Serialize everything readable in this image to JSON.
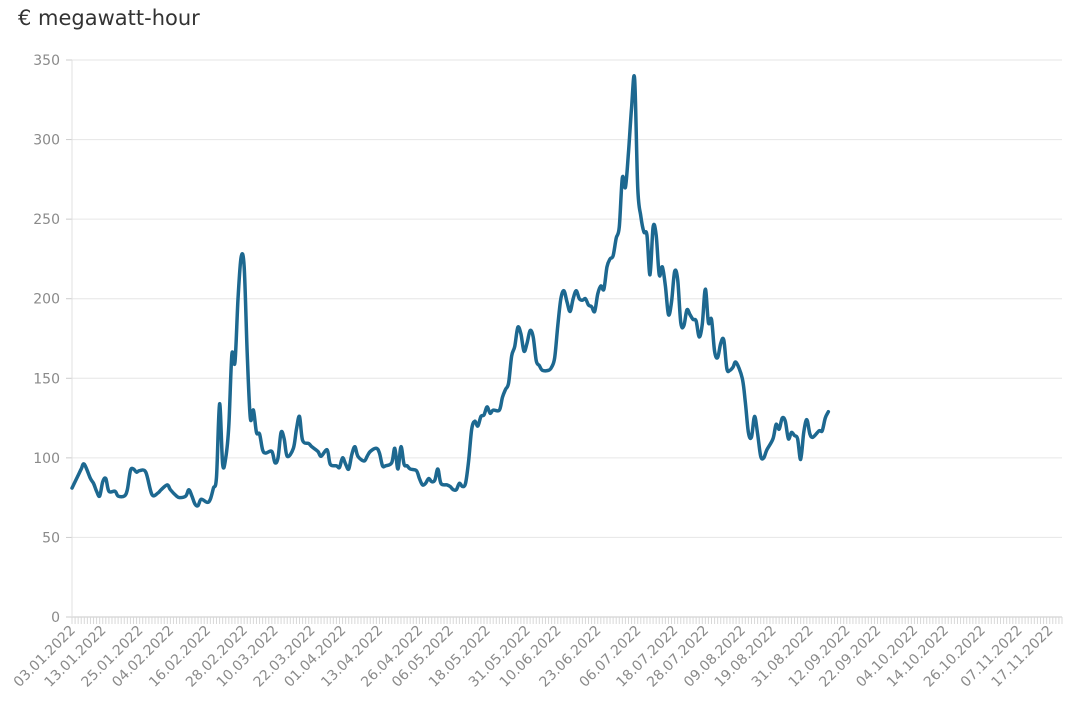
{
  "chart_data": {
    "type": "line",
    "ylabel": "€ megawatt-hour",
    "ylim": [
      0,
      350
    ],
    "yticks": [
      0,
      50,
      100,
      150,
      200,
      250,
      300,
      350
    ],
    "xlim": [
      "03.01.2022",
      "21.11.2022"
    ],
    "xtick_labels": [
      "03.01.2022",
      "13.01.2022",
      "25.01.2022",
      "04.02.2022",
      "16.02.2022",
      "28.02.2022",
      "10.03.2022",
      "22.03.2022",
      "01.04.2022",
      "13.04.2022",
      "26.04.2022",
      "06.05.2022",
      "18.05.2022",
      "31.05.2022",
      "10.06.2022",
      "23.06.2022",
      "06.07.2022",
      "18.07.2022",
      "28.07.2022",
      "09.08.2022",
      "19.08.2022",
      "31.08.2022",
      "12.09.2022",
      "22.09.2022",
      "04.10.2022",
      "14.10.2022",
      "26.10.2022",
      "07.11.2022",
      "17.11.2022"
    ],
    "grid": true,
    "color": "#1d6890",
    "series": [
      {
        "points": [
          [
            "03.01.2022",
            81
          ],
          [
            "05.01.2022",
            89
          ],
          [
            "06.01.2022",
            93
          ],
          [
            "07.01.2022",
            96
          ],
          [
            "09.01.2022",
            87
          ],
          [
            "10.01.2022",
            84
          ],
          [
            "11.01.2022",
            79
          ],
          [
            "12.01.2022",
            76
          ],
          [
            "13.01.2022",
            85
          ],
          [
            "14.01.2022",
            87
          ],
          [
            "15.01.2022",
            79
          ],
          [
            "17.01.2022",
            79
          ],
          [
            "18.01.2022",
            76
          ],
          [
            "20.01.2022",
            76
          ],
          [
            "21.01.2022",
            80
          ],
          [
            "22.01.2022",
            92
          ],
          [
            "23.01.2022",
            93
          ],
          [
            "24.01.2022",
            91
          ],
          [
            "25.01.2022",
            92
          ],
          [
            "27.01.2022",
            91
          ],
          [
            "29.01.2022",
            77
          ],
          [
            "31.01.2022",
            78
          ],
          [
            "01.02.2022",
            80
          ],
          [
            "03.02.2022",
            83
          ],
          [
            "04.02.2022",
            80
          ],
          [
            "06.02.2022",
            76
          ],
          [
            "07.02.2022",
            75
          ],
          [
            "09.02.2022",
            76
          ],
          [
            "10.02.2022",
            80
          ],
          [
            "11.02.2022",
            76
          ],
          [
            "12.02.2022",
            71
          ],
          [
            "13.02.2022",
            70
          ],
          [
            "14.02.2022",
            74
          ],
          [
            "16.02.2022",
            72
          ],
          [
            "17.02.2022",
            74
          ],
          [
            "18.02.2022",
            81
          ],
          [
            "19.02.2022",
            88
          ],
          [
            "20.02.2022",
            134
          ],
          [
            "21.02.2022",
            96
          ],
          [
            "22.02.2022",
            100
          ],
          [
            "23.02.2022",
            120
          ],
          [
            "24.02.2022",
            165
          ],
          [
            "25.02.2022",
            160
          ],
          [
            "26.02.2022",
            200
          ],
          [
            "27.02.2022",
            226
          ],
          [
            "28.02.2022",
            220
          ],
          [
            "01.03.2022",
            165
          ],
          [
            "02.03.2022",
            125
          ],
          [
            "03.03.2022",
            130
          ],
          [
            "04.03.2022",
            116
          ],
          [
            "05.03.2022",
            115
          ],
          [
            "06.03.2022",
            105
          ],
          [
            "07.03.2022",
            103
          ],
          [
            "09.03.2022",
            104
          ],
          [
            "10.03.2022",
            97
          ],
          [
            "11.03.2022",
            100
          ],
          [
            "12.03.2022",
            116
          ],
          [
            "13.03.2022",
            112
          ],
          [
            "14.03.2022",
            101
          ],
          [
            "16.03.2022",
            106
          ],
          [
            "17.03.2022",
            118
          ],
          [
            "18.03.2022",
            126
          ],
          [
            "19.03.2022",
            111
          ],
          [
            "21.03.2022",
            109
          ],
          [
            "22.03.2022",
            107
          ],
          [
            "24.03.2022",
            104
          ],
          [
            "25.03.2022",
            101
          ],
          [
            "27.03.2022",
            105
          ],
          [
            "28.03.2022",
            96
          ],
          [
            "30.03.2022",
            95
          ],
          [
            "31.03.2022",
            94
          ],
          [
            "01.04.2022",
            100
          ],
          [
            "02.04.2022",
            96
          ],
          [
            "03.04.2022",
            93
          ],
          [
            "04.04.2022",
            102
          ],
          [
            "05.04.2022",
            107
          ],
          [
            "06.04.2022",
            101
          ],
          [
            "08.04.2022",
            98
          ],
          [
            "09.04.2022",
            101
          ],
          [
            "10.04.2022",
            104
          ],
          [
            "12.04.2022",
            106
          ],
          [
            "13.04.2022",
            103
          ],
          [
            "14.04.2022",
            95
          ],
          [
            "15.04.2022",
            95
          ],
          [
            "17.04.2022",
            97
          ],
          [
            "18.04.2022",
            106
          ],
          [
            "19.04.2022",
            93
          ],
          [
            "20.04.2022",
            107
          ],
          [
            "21.04.2022",
            96
          ],
          [
            "22.04.2022",
            95
          ],
          [
            "23.04.2022",
            93
          ],
          [
            "25.04.2022",
            92
          ],
          [
            "26.04.2022",
            87
          ],
          [
            "27.04.2022",
            83
          ],
          [
            "28.04.2022",
            84
          ],
          [
            "29.04.2022",
            87
          ],
          [
            "30.04.2022",
            85
          ],
          [
            "01.05.2022",
            86
          ],
          [
            "02.05.2022",
            93
          ],
          [
            "03.05.2022",
            84
          ],
          [
            "05.05.2022",
            83
          ],
          [
            "06.05.2022",
            82
          ],
          [
            "07.05.2022",
            80
          ],
          [
            "08.05.2022",
            80
          ],
          [
            "09.05.2022",
            84
          ],
          [
            "10.05.2022",
            82
          ],
          [
            "11.05.2022",
            84
          ],
          [
            "12.05.2022",
            98
          ],
          [
            "13.05.2022",
            118
          ],
          [
            "14.05.2022",
            123
          ],
          [
            "15.05.2022",
            120
          ],
          [
            "16.05.2022",
            126
          ],
          [
            "17.05.2022",
            127
          ],
          [
            "18.05.2022",
            132
          ],
          [
            "19.05.2022",
            128
          ],
          [
            "20.05.2022",
            130
          ],
          [
            "22.05.2022",
            130
          ],
          [
            "23.05.2022",
            138
          ],
          [
            "24.05.2022",
            143
          ],
          [
            "25.05.2022",
            147
          ],
          [
            "26.05.2022",
            164
          ],
          [
            "27.05.2022",
            170
          ],
          [
            "28.05.2022",
            182
          ],
          [
            "29.05.2022",
            178
          ],
          [
            "30.05.2022",
            167
          ],
          [
            "31.05.2022",
            172
          ],
          [
            "01.06.2022",
            180
          ],
          [
            "02.06.2022",
            176
          ],
          [
            "03.06.2022",
            161
          ],
          [
            "04.06.2022",
            158
          ],
          [
            "05.06.2022",
            155
          ],
          [
            "07.06.2022",
            155
          ],
          [
            "08.06.2022",
            157
          ],
          [
            "09.06.2022",
            163
          ],
          [
            "10.06.2022",
            183
          ],
          [
            "11.06.2022",
            200
          ],
          [
            "12.06.2022",
            205
          ],
          [
            "13.06.2022",
            198
          ],
          [
            "14.06.2022",
            192
          ],
          [
            "15.06.2022",
            200
          ],
          [
            "16.06.2022",
            205
          ],
          [
            "17.06.2022",
            200
          ],
          [
            "18.06.2022",
            199
          ],
          [
            "19.06.2022",
            200
          ],
          [
            "20.06.2022",
            196
          ],
          [
            "21.06.2022",
            195
          ],
          [
            "22.06.2022",
            192
          ],
          [
            "23.06.2022",
            203
          ],
          [
            "24.06.2022",
            208
          ],
          [
            "25.06.2022",
            206
          ],
          [
            "26.06.2022",
            220
          ],
          [
            "27.06.2022",
            225
          ],
          [
            "28.06.2022",
            227
          ],
          [
            "29.06.2022",
            238
          ],
          [
            "30.06.2022",
            245
          ],
          [
            "01.07.2022",
            276
          ],
          [
            "02.07.2022",
            270
          ],
          [
            "03.07.2022",
            292
          ],
          [
            "04.07.2022",
            320
          ],
          [
            "05.07.2022",
            338
          ],
          [
            "06.07.2022",
            270
          ],
          [
            "07.07.2022",
            252
          ],
          [
            "08.07.2022",
            242
          ],
          [
            "09.07.2022",
            240
          ],
          [
            "10.07.2022",
            215
          ],
          [
            "11.07.2022",
            245
          ],
          [
            "12.07.2022",
            240
          ],
          [
            "13.07.2022",
            215
          ],
          [
            "14.07.2022",
            220
          ],
          [
            "15.07.2022",
            208
          ],
          [
            "16.07.2022",
            190
          ],
          [
            "17.07.2022",
            198
          ],
          [
            "18.07.2022",
            217
          ],
          [
            "19.07.2022",
            212
          ],
          [
            "20.07.2022",
            185
          ],
          [
            "21.07.2022",
            183
          ],
          [
            "22.07.2022",
            193
          ],
          [
            "23.07.2022",
            190
          ],
          [
            "24.07.2022",
            187
          ],
          [
            "25.07.2022",
            186
          ],
          [
            "26.07.2022",
            176
          ],
          [
            "27.07.2022",
            184
          ],
          [
            "28.07.2022",
            206
          ],
          [
            "29.07.2022",
            185
          ],
          [
            "30.07.2022",
            187
          ],
          [
            "31.07.2022",
            167
          ],
          [
            "01.08.2022",
            163
          ],
          [
            "02.08.2022",
            172
          ],
          [
            "03.08.2022",
            174
          ],
          [
            "04.08.2022",
            156
          ],
          [
            "05.08.2022",
            155
          ],
          [
            "06.08.2022",
            157
          ],
          [
            "07.08.2022",
            160
          ],
          [
            "09.08.2022",
            150
          ],
          [
            "10.08.2022",
            135
          ],
          [
            "11.08.2022",
            116
          ],
          [
            "12.08.2022",
            113
          ],
          [
            "13.08.2022",
            126
          ],
          [
            "14.08.2022",
            115
          ],
          [
            "15.08.2022",
            101
          ],
          [
            "16.08.2022",
            100
          ],
          [
            "17.08.2022",
            105
          ],
          [
            "19.08.2022",
            112
          ],
          [
            "20.08.2022",
            121
          ],
          [
            "21.08.2022",
            118
          ],
          [
            "22.08.2022",
            125
          ],
          [
            "23.08.2022",
            123
          ],
          [
            "24.08.2022",
            112
          ],
          [
            "25.08.2022",
            116
          ],
          [
            "26.08.2022",
            114
          ],
          [
            "27.08.2022",
            112
          ],
          [
            "28.08.2022",
            99
          ],
          [
            "29.08.2022",
            116
          ],
          [
            "30.08.2022",
            124
          ],
          [
            "31.08.2022",
            115
          ],
          [
            "01.09.2022",
            113
          ],
          [
            "03.09.2022",
            117
          ],
          [
            "04.09.2022",
            117
          ],
          [
            "05.09.2022",
            125
          ],
          [
            "06.09.2022",
            129
          ]
        ]
      }
    ]
  }
}
